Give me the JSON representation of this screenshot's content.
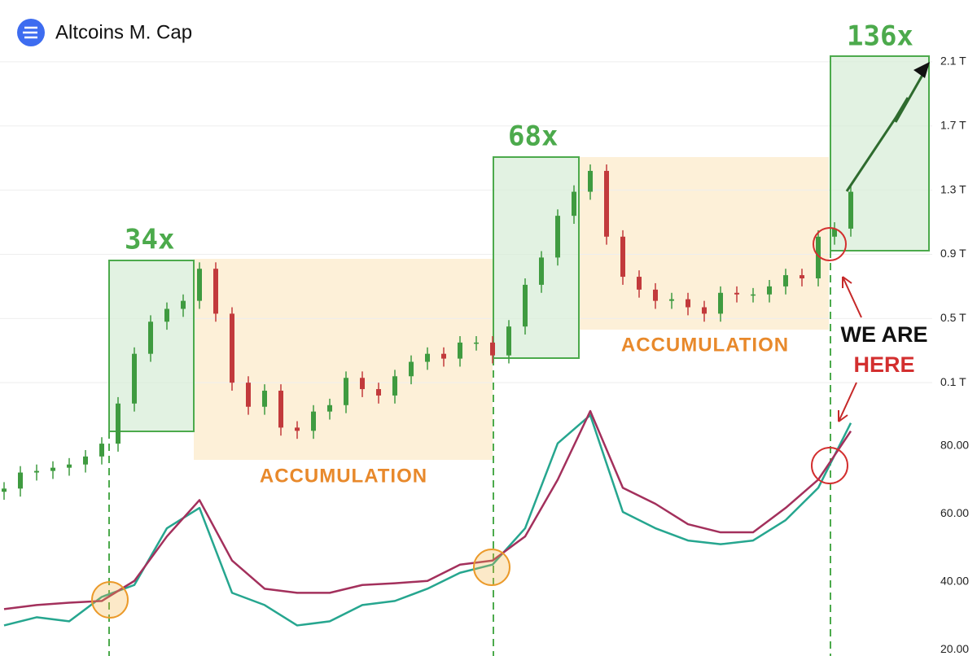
{
  "chart_data": [
    {
      "type": "candlestick",
      "title": "Altcoins M. Cap",
      "annotations": [
        "34x",
        "68x",
        "136x",
        "ACCUMULATION",
        "ACCUMULATION",
        "WE ARE",
        "HERE"
      ],
      "up_color": "#3f9b40",
      "down_color": "#c23a3c",
      "grid": true,
      "ylim": [
        -0.66,
        2.485
      ],
      "yticks": [
        {
          "value": 0.1,
          "label": "0.1 T"
        },
        {
          "value": 0.5,
          "label": "0.5 T"
        },
        {
          "value": 0.9,
          "label": "0.9 T"
        },
        {
          "value": 1.3,
          "label": "1.3 T"
        },
        {
          "value": 1.7,
          "label": "1.7 T"
        },
        {
          "value": 2.1,
          "label": "2.1 T"
        }
      ],
      "open": [
        -0.58,
        -0.56,
        -0.46,
        -0.45,
        -0.43,
        -0.41,
        -0.36,
        -0.28,
        -0.03,
        0.28,
        0.48,
        0.56,
        0.61,
        0.81,
        0.53,
        0.1,
        -0.05,
        0.05,
        -0.18,
        -0.2,
        -0.08,
        -0.04,
        0.13,
        0.06,
        0.02,
        0.14,
        0.23,
        0.28,
        0.25,
        0.35,
        0.35,
        0.27,
        0.45,
        0.71,
        0.88,
        1.14,
        1.29,
        1.42,
        1.01,
        0.76,
        0.68,
        0.61,
        0.62,
        0.57,
        0.53,
        0.66,
        0.65,
        0.65,
        0.7,
        0.77,
        0.75,
        1.01,
        1.06
      ],
      "high": [
        -0.52,
        -0.42,
        -0.41,
        -0.39,
        -0.37,
        -0.32,
        -0.24,
        0.01,
        0.32,
        0.52,
        0.6,
        0.65,
        0.85,
        0.85,
        0.57,
        0.14,
        0.09,
        0.09,
        -0.14,
        -0.04,
        0.0,
        0.17,
        0.17,
        0.1,
        0.18,
        0.27,
        0.32,
        0.32,
        0.39,
        0.39,
        0.39,
        0.49,
        0.75,
        0.92,
        1.18,
        1.33,
        1.46,
        1.46,
        1.05,
        0.8,
        0.72,
        0.66,
        0.66,
        0.61,
        0.7,
        0.7,
        0.69,
        0.74,
        0.81,
        0.81,
        1.05,
        1.1,
        1.33
      ],
      "low": [
        -0.63,
        -0.61,
        -0.51,
        -0.5,
        -0.48,
        -0.46,
        -0.41,
        -0.33,
        -0.08,
        0.23,
        0.43,
        0.51,
        0.56,
        0.48,
        0.05,
        -0.1,
        -0.1,
        -0.23,
        -0.25,
        -0.25,
        -0.13,
        -0.09,
        0.01,
        -0.03,
        -0.03,
        0.09,
        0.18,
        0.2,
        0.2,
        0.3,
        0.22,
        0.22,
        0.4,
        0.66,
        0.83,
        1.09,
        1.24,
        0.96,
        0.71,
        0.63,
        0.56,
        0.56,
        0.52,
        0.48,
        0.48,
        0.6,
        0.6,
        0.6,
        0.65,
        0.7,
        0.7,
        0.96,
        1.01
      ],
      "close": [
        -0.56,
        -0.46,
        -0.45,
        -0.43,
        -0.41,
        -0.36,
        -0.28,
        -0.03,
        0.28,
        0.48,
        0.56,
        0.61,
        0.81,
        0.53,
        0.1,
        -0.05,
        0.05,
        -0.18,
        -0.2,
        -0.08,
        -0.04,
        0.13,
        0.06,
        0.02,
        0.14,
        0.23,
        0.28,
        0.25,
        0.35,
        0.35,
        0.27,
        0.45,
        0.71,
        0.88,
        1.14,
        1.29,
        1.42,
        1.01,
        0.76,
        0.68,
        0.61,
        0.62,
        0.57,
        0.53,
        0.66,
        0.65,
        0.65,
        0.7,
        0.77,
        0.75,
        1.01,
        1.06,
        1.29
      ]
    },
    {
      "type": "line",
      "ylim": [
        18.1,
        96.2
      ],
      "yticks": [
        {
          "value": 20,
          "label": "20.00"
        },
        {
          "value": 40,
          "label": "40.00"
        },
        {
          "value": 60,
          "label": "60.00"
        },
        {
          "value": 80,
          "label": "80.00"
        }
      ],
      "series": [
        {
          "color": "#26a68f",
          "values": [
            27.1,
            29.5,
            28.3,
            35.5,
            39.0,
            55.7,
            61.7,
            36.7,
            33.1,
            27.1,
            28.3,
            33.1,
            34.3,
            37.9,
            42.6,
            45.0,
            55.7,
            80.7,
            89.0,
            60.5,
            55.7,
            52.1,
            51.0,
            52.1,
            58.1,
            67.6,
            86.7
          ]
        },
        {
          "color": "#a3305c",
          "values": [
            31.9,
            33.1,
            33.8,
            34.3,
            40.2,
            53.3,
            64.0,
            46.2,
            37.9,
            36.7,
            36.7,
            39.0,
            39.5,
            40.2,
            45.0,
            46.2,
            53.3,
            70.0,
            90.2,
            67.6,
            62.9,
            56.9,
            54.5,
            54.5,
            61.7,
            70.0,
            84.3
          ]
        }
      ]
    }
  ]
}
